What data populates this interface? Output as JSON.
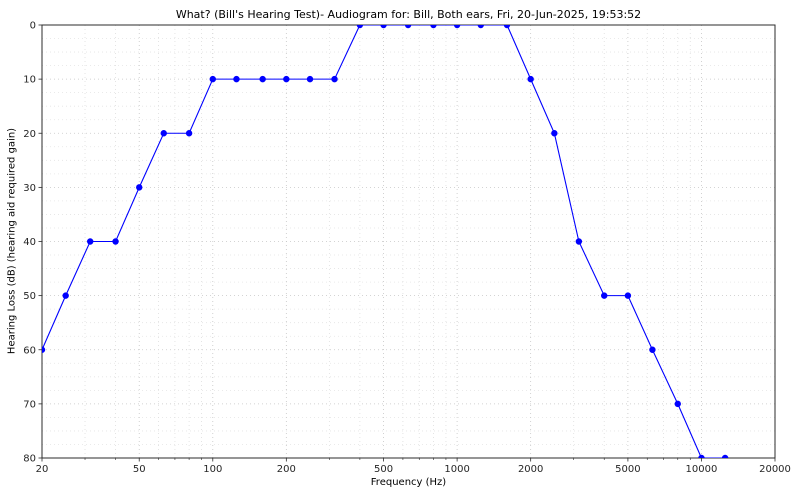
{
  "chart_data": {
    "type": "line",
    "title": "What? (Bill's Hearing Test)- Audiogram for: Bill, Both ears, Fri, 20-Jun-2025, 19:53:52",
    "xlabel": "Frequency (Hz)",
    "ylabel": "Hearing Loss (dB) (hearing aid required gain)",
    "x_scale": "log",
    "x_range": [
      20,
      20000
    ],
    "y_range": [
      0,
      80
    ],
    "y_inverted": true,
    "grid": "both-dotted",
    "legend": "none",
    "line_color": "#0000ff",
    "marker": "circle",
    "x_ticks": [
      20,
      50,
      100,
      200,
      500,
      1000,
      2000,
      5000,
      10000,
      20000
    ],
    "y_ticks": [
      0,
      10,
      20,
      30,
      40,
      50,
      60,
      70,
      80
    ],
    "series": [
      {
        "name": "Both ears",
        "x": [
          20,
          25,
          31.5,
          40,
          50,
          63,
          80,
          100,
          125,
          160,
          200,
          250,
          315,
          400,
          500,
          630,
          800,
          1000,
          1250,
          1600,
          2000,
          2500,
          3150,
          4000,
          5000,
          6300,
          8000,
          10000,
          12500
        ],
        "y": [
          60,
          50,
          40,
          40,
          30,
          20,
          20,
          10,
          10,
          10,
          10,
          10,
          10,
          0,
          0,
          0,
          0,
          0,
          0,
          0,
          10,
          20,
          40,
          50,
          50,
          60,
          70,
          80,
          80
        ]
      }
    ]
  }
}
